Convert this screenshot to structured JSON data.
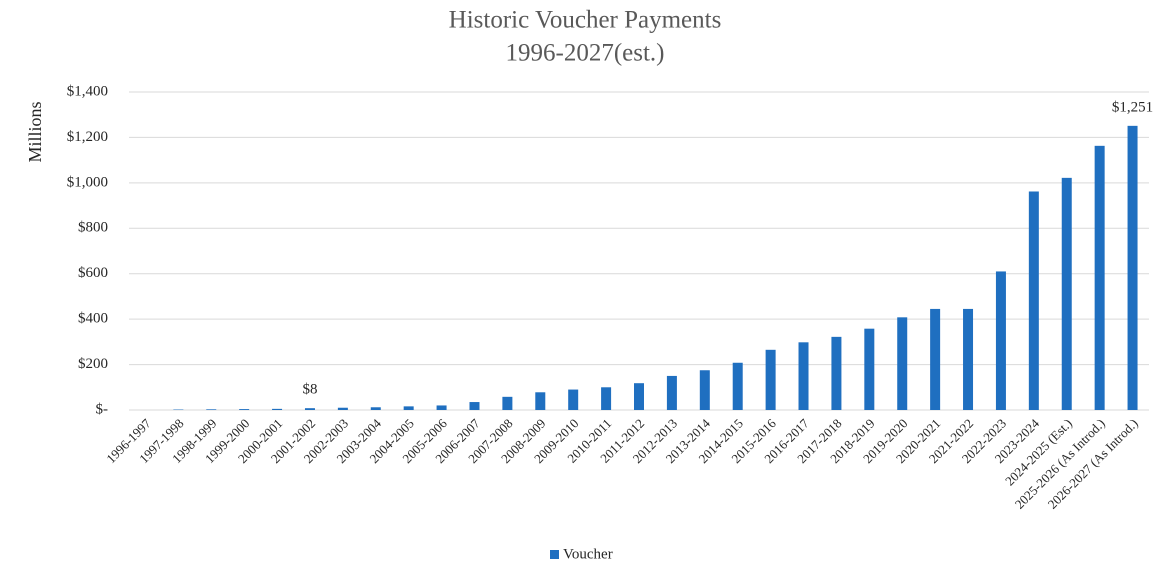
{
  "chart_data": {
    "type": "bar",
    "title": "Historic Voucher Payments",
    "subtitle": "1996-2027(est.)",
    "y_label": "Millions",
    "categories": [
      "1996-1997",
      "1997-1998",
      "1998-1999",
      "1999-2000",
      "2000-2001",
      "2001-2002",
      "2002-2003",
      "2003-2004",
      "2004-2005",
      "2005-2006",
      "2006-2007",
      "2007-2008",
      "2008-2009",
      "2009-2010",
      "2010-2011",
      "2011-2012",
      "2012-2013",
      "2013-2014",
      "2014-2015",
      "2015-2016",
      "2016-2017",
      "2017-2018",
      "2018-2019",
      "2019-2020",
      "2020-2021",
      "2021-2022",
      "2022-2023",
      "2023-2024",
      "2024-2025 (Est.)",
      "2025-2026 (As Introd.)",
      "2026-2027 (As Introd.)"
    ],
    "series": [
      {
        "name": "Voucher",
        "color": "#1f6fc0",
        "values": [
          0,
          2,
          3,
          4,
          5,
          8,
          10,
          12,
          16,
          20,
          35,
          58,
          78,
          90,
          100,
          118,
          150,
          175,
          208,
          265,
          298,
          322,
          358,
          408,
          445,
          445,
          610,
          962,
          1022,
          1163,
          1251
        ],
        "value_labels": [
          null,
          null,
          null,
          null,
          null,
          "$8",
          null,
          null,
          null,
          null,
          null,
          null,
          null,
          null,
          null,
          null,
          null,
          null,
          null,
          null,
          null,
          null,
          null,
          null,
          null,
          null,
          null,
          null,
          null,
          null,
          "$1,251"
        ]
      }
    ],
    "ylim": [
      0,
      1400
    ],
    "yticks": [
      {
        "value": 0,
        "label": "$-"
      },
      {
        "value": 200,
        "label": "$200"
      },
      {
        "value": 400,
        "label": "$400"
      },
      {
        "value": 600,
        "label": "$600"
      },
      {
        "value": 800,
        "label": "$800"
      },
      {
        "value": 1000,
        "label": "$1,000"
      },
      {
        "value": 1200,
        "label": "$1,200"
      },
      {
        "value": 1400,
        "label": "$1,400"
      }
    ],
    "grid": true,
    "legend": "bottom"
  }
}
